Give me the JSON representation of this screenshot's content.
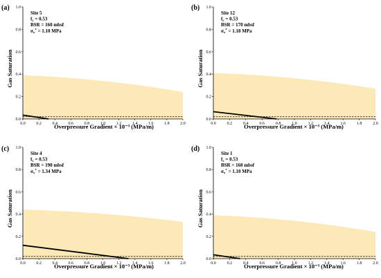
{
  "chart_data": [
    {
      "type": "area",
      "panel_label": "(a)",
      "site": "Site 5",
      "annotations": {
        "fc": "0.53",
        "bsr": "BSR = 160 mbsf",
        "sigma": "1.10 MPa"
      },
      "xlabel": "Overpressure Gradient × 10⁻³ (MPa/m)",
      "ylabel": "Gas Saturation",
      "xlim": [
        0,
        2
      ],
      "ylim": [
        0,
        1
      ],
      "xticks": [
        "0.0",
        "0.2",
        "0.4",
        "0.6",
        "0.8",
        "1.0",
        "1.2",
        "1.4",
        "1.6",
        "1.8",
        "2.0"
      ],
      "yticks": [
        "0.0",
        "0.2",
        "0.4",
        "0.6",
        "0.8",
        "1.0"
      ],
      "band_upper": {
        "x": [
          0,
          2
        ],
        "y": [
          0.39,
          0.24
        ]
      },
      "solid_line": {
        "x": [
          0,
          0.32
        ],
        "y": [
          0.035,
          0.0
        ]
      },
      "dashed_line": {
        "y": 0.02
      }
    },
    {
      "type": "area",
      "panel_label": "(b)",
      "site": "Site 12",
      "annotations": {
        "fc": "0.53",
        "bsr": "BSR = 170 mbsf",
        "sigma": "1.18 MPa"
      },
      "xlabel": "Overpressure Gradient × 10⁻³ (MPa/m)",
      "ylabel": "Gas Saturation",
      "xlim": [
        0,
        2
      ],
      "ylim": [
        0,
        1
      ],
      "xticks": [
        "0.0",
        "0.2",
        "0.4",
        "0.6",
        "0.8",
        "1.0",
        "1.2",
        "1.4",
        "1.6",
        "1.8",
        "2.0"
      ],
      "yticks": [
        "0.0",
        "0.2",
        "0.4",
        "0.6",
        "0.8",
        "1.0"
      ],
      "band_upper": {
        "x": [
          0,
          2
        ],
        "y": [
          0.41,
          0.27
        ]
      },
      "solid_line": {
        "x": [
          0,
          0.78
        ],
        "y": [
          0.065,
          0.0
        ]
      },
      "dashed_line": {
        "y": 0.02
      }
    },
    {
      "type": "area",
      "panel_label": "(c)",
      "site": "Site 4",
      "annotations": {
        "fc": "0.53",
        "bsr": "BSR = 190 mbsf",
        "sigma": "1.34 MPa"
      },
      "xlabel": "Overpressure Gradient × 10⁻³ (MPa/m)",
      "ylabel": "Gas Saturation",
      "xlim": [
        0,
        2
      ],
      "ylim": [
        0,
        1
      ],
      "xticks": [
        "0.0",
        "0.2",
        "0.4",
        "0.6",
        "0.8",
        "1.0",
        "1.2",
        "1.4",
        "1.6",
        "1.8",
        "2.0"
      ],
      "yticks": [
        "0.0",
        "0.2",
        "0.4",
        "0.6",
        "0.8",
        "1.0"
      ],
      "band_upper": {
        "x": [
          0,
          2
        ],
        "y": [
          0.44,
          0.33
        ]
      },
      "solid_line": {
        "x": [
          0,
          1.32
        ],
        "y": [
          0.12,
          0.0
        ]
      },
      "dashed_line": {
        "y": 0.02
      }
    },
    {
      "type": "area",
      "panel_label": "(d)",
      "site": "Site 1",
      "annotations": {
        "fc": "0.53",
        "bsr": "BSR = 160 mbsf",
        "sigma": "1.10 MPa"
      },
      "xlabel": "Overpressure Gradient × 10⁻³ (MPa/m)",
      "ylabel": "Gas Saturation",
      "xlim": [
        0,
        2
      ],
      "ylim": [
        0,
        1
      ],
      "xticks": [
        "0.0",
        "0.2",
        "0.4",
        "0.6",
        "0.8",
        "1.0",
        "1.2",
        "1.4",
        "1.6",
        "1.8",
        "2.0"
      ],
      "yticks": [
        "0.0",
        "0.2",
        "0.4",
        "0.6",
        "0.8",
        "1.0"
      ],
      "band_upper": {
        "x": [
          0,
          2
        ],
        "y": [
          0.39,
          0.24
        ]
      },
      "solid_line": {
        "x": [
          0,
          0.33
        ],
        "y": [
          0.035,
          0.0
        ]
      },
      "dashed_line": {
        "y": 0.02
      }
    }
  ],
  "colors": {
    "band": "#fde9b8",
    "line": "#000000",
    "axis": "#000000"
  }
}
